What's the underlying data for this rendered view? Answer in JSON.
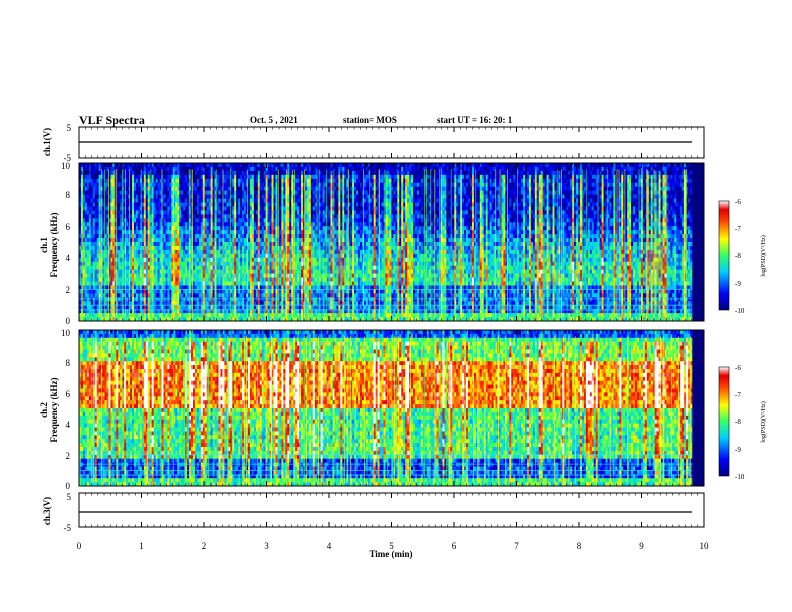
{
  "header": {
    "title": "VLF Spectra",
    "date": "Oct. 5 , 2021",
    "station": "station= MOS",
    "start": "start  UT =   16: 20: 1"
  },
  "chart_data": [
    {
      "type": "line",
      "panel": "ch1-waveform",
      "ylabel": "ch.1(V)",
      "ylim": [
        -5,
        5
      ],
      "yticks": [
        "5",
        "-5"
      ]
    },
    {
      "type": "heatmap",
      "panel": "ch1-spectrogram",
      "ylabel_line1": "ch.1",
      "ylabel_line2": "Frequency (kHz)",
      "ylim": [
        0,
        10
      ],
      "yticks": [
        "0",
        "2",
        "4",
        "6",
        "8",
        "10"
      ],
      "colorbar": {
        "label": "log(PSD)(V²/Hz)",
        "ticks": [
          "-6",
          "-7",
          "-8",
          "-9",
          "-10"
        ],
        "range": [
          -10,
          -6
        ]
      }
    },
    {
      "type": "heatmap",
      "panel": "ch2-spectrogram",
      "ylabel_line1": "ch.2",
      "ylabel_line2": "Frequency (kHz)",
      "ylim": [
        0,
        10
      ],
      "yticks": [
        "0",
        "2",
        "4",
        "6",
        "8",
        "10"
      ],
      "colorbar": {
        "label": "log(PSD)(V²/Hz)",
        "ticks": [
          "-6",
          "-7",
          "-8",
          "-9",
          "-10"
        ],
        "range": [
          -10,
          -6
        ]
      }
    },
    {
      "type": "line",
      "panel": "ch3-waveform",
      "ylabel": "ch.3(V)",
      "ylim": [
        -5,
        5
      ],
      "yticks": [
        "5",
        "-5"
      ]
    }
  ],
  "xaxis": {
    "label": "Time (min)",
    "xlim": [
      0,
      10
    ],
    "ticks": [
      "0",
      "1",
      "2",
      "3",
      "4",
      "5",
      "6",
      "7",
      "8",
      "9",
      "10"
    ]
  }
}
